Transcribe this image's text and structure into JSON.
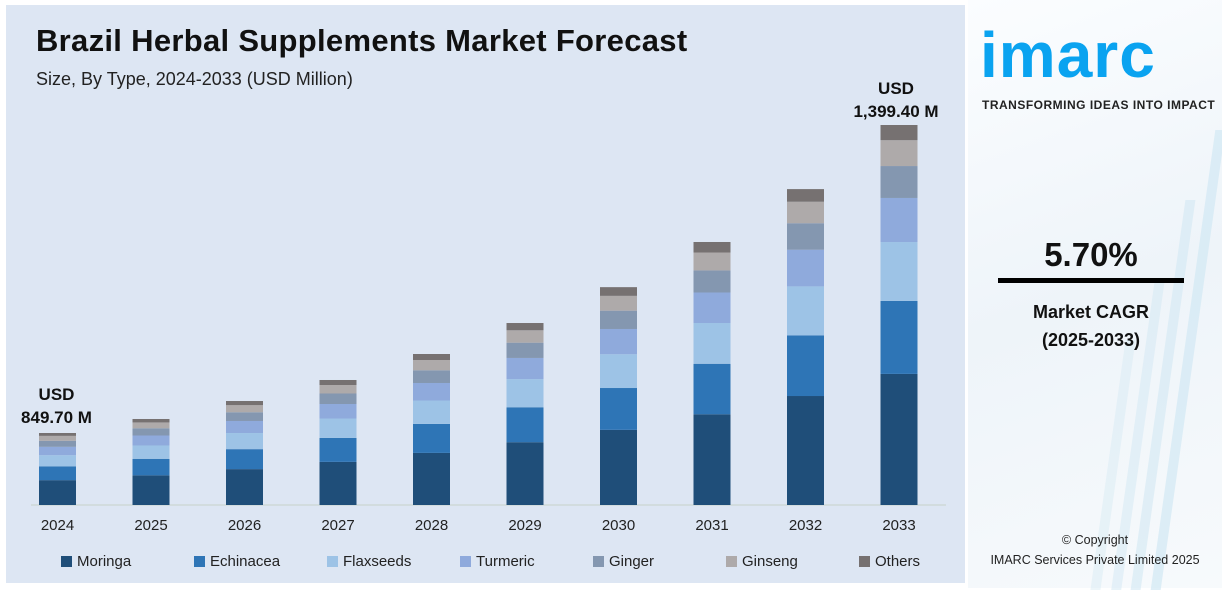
{
  "chart_data": {
    "type": "bar",
    "stacked": true,
    "title": "Brazil Herbal Supplements Market Forecast",
    "subtitle": "Size, By Type, 2024-2033 (USD Million)",
    "categories": [
      "2024",
      "2025",
      "2026",
      "2027",
      "2028",
      "2029",
      "2030",
      "2031",
      "2032",
      "2033"
    ],
    "totals_estimated": [
      849.7,
      874.7,
      906.8,
      944.3,
      990.7,
      1046.0,
      1110.0,
      1190.6,
      1285.0,
      1399.4
    ],
    "segment_shares": {
      "Moringa": 0.345,
      "Echinacea": 0.192,
      "Flaxseeds": 0.155,
      "Turmeric": 0.116,
      "Ginger": 0.084,
      "Ginseng": 0.068,
      "Others": 0.04
    },
    "series": [
      {
        "name": "Moringa",
        "color": "#1f4e79"
      },
      {
        "name": "Echinacea",
        "color": "#2e75b6"
      },
      {
        "name": "Flaxseeds",
        "color": "#9dc3e6"
      },
      {
        "name": "Turmeric",
        "color": "#8faadc"
      },
      {
        "name": "Ginger",
        "color": "#8497b0"
      },
      {
        "name": "Ginseng",
        "color": "#aeaaaa"
      },
      {
        "name": "Others",
        "color": "#767171"
      }
    ],
    "annotations": [
      {
        "category": "2024",
        "line1": "USD",
        "line2": "849.70 M"
      },
      {
        "category": "2033",
        "line1": "USD",
        "line2": "1,399.40 M"
      }
    ],
    "legend_position": "bottom",
    "grid": false
  },
  "brand": {
    "logo": "imarc",
    "tagline": "TRANSFORMING IDEAS INTO IMPACT",
    "color": "#0aa3f0"
  },
  "cagr": {
    "value": "5.70%",
    "label1": "Market CAGR",
    "label2": "(2025-2033)"
  },
  "footer": {
    "copyright": "© Copyright",
    "company": "IMARC Services Private Limited 2025"
  }
}
